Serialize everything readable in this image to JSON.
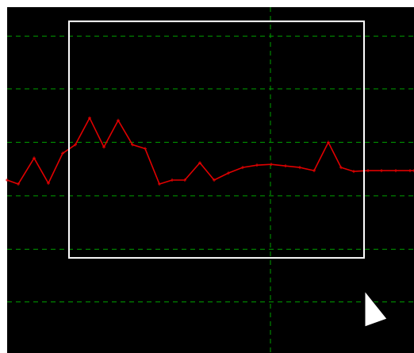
{
  "view": {
    "background": "#000000",
    "border_color": "#ffffff",
    "grid_color": "#00a000",
    "trace_color": "#e00000",
    "selection_color": "#ffffff",
    "cursor_color": "#ffffff",
    "grid_style": "dashed",
    "tool": "rectangle-select",
    "cursor_icon": "arrow-pointer-icon"
  },
  "chart_data": {
    "type": "line",
    "title": "",
    "xlabel": "",
    "ylabel": "",
    "xlim": [
      0,
      513
    ],
    "ylim": [
      -30,
      410
    ],
    "grid": true,
    "grid_x": [
      332
    ],
    "grid_y": [
      35,
      102,
      170,
      238,
      306,
      373
    ],
    "series": [
      {
        "x": [
          0,
          14,
          34,
          52,
          70,
          86,
          104,
          122,
          140,
          158,
          174,
          192,
          208,
          224,
          243,
          261,
          279,
          297,
          315,
          333,
          351,
          369,
          387,
          405,
          421,
          437,
          455,
          472,
          490,
          508,
          513
        ],
        "y": [
          190,
          185,
          218,
          186,
          224,
          235,
          269,
          232,
          266,
          235,
          230,
          185,
          190,
          190,
          212,
          190,
          199,
          206,
          209,
          210,
          208,
          206,
          202,
          238,
          206,
          201,
          202,
          202,
          202,
          202,
          202
        ]
      }
    ],
    "selection": {
      "x": [
        78,
        450
      ],
      "y": [
        91,
        392
      ]
    }
  }
}
